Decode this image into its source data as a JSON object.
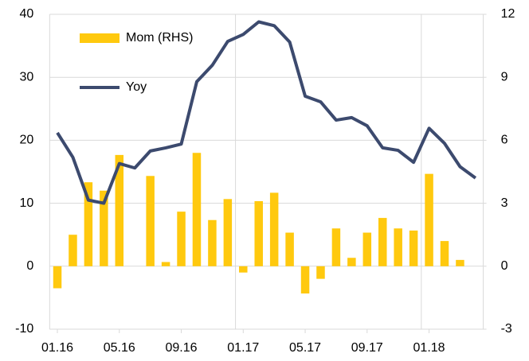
{
  "chart_data": {
    "type": "bar_line",
    "categories": [
      "01.16",
      null,
      null,
      null,
      "05.16",
      null,
      null,
      null,
      "09.16",
      null,
      null,
      null,
      "01.17",
      null,
      null,
      null,
      "05.17",
      null,
      null,
      null,
      "09.17",
      null,
      null,
      null,
      "01.18",
      null,
      null,
      null
    ],
    "series": [
      {
        "name": "Mom (RHS)",
        "type": "bar",
        "axis": "y2",
        "color": "#ffc90e",
        "values": [
          -1.05,
          1.5,
          4.0,
          3.6,
          5.3,
          null,
          4.3,
          0.2,
          2.6,
          5.4,
          2.2,
          3.2,
          -0.3,
          3.1,
          3.5,
          1.6,
          -1.3,
          -0.6,
          1.8,
          0.4,
          1.6,
          2.3,
          1.8,
          1.7,
          4.4,
          1.2,
          0.3,
          null
        ]
      },
      {
        "name": "Yoy",
        "type": "line",
        "axis": "y",
        "color": "#3c4a6e",
        "values": [
          21.2,
          17.3,
          10.5,
          10,
          16.3,
          15.6,
          18.3,
          18.8,
          19.4,
          29.3,
          31.9,
          35.7,
          36.8,
          38.8,
          38.2,
          35.6,
          27,
          26.1,
          23.2,
          23.6,
          22.3,
          18.8,
          18.4,
          16.5,
          21.9,
          19.5,
          15.8,
          14
        ]
      }
    ],
    "ylim": [
      -10,
      40
    ],
    "yticks": [
      -10,
      0,
      10,
      20,
      30,
      40
    ],
    "y2lim": [
      -3,
      12
    ],
    "y2ticks": [
      -3,
      0,
      3,
      6,
      9,
      12
    ],
    "grid": true,
    "legend": "upper left"
  }
}
